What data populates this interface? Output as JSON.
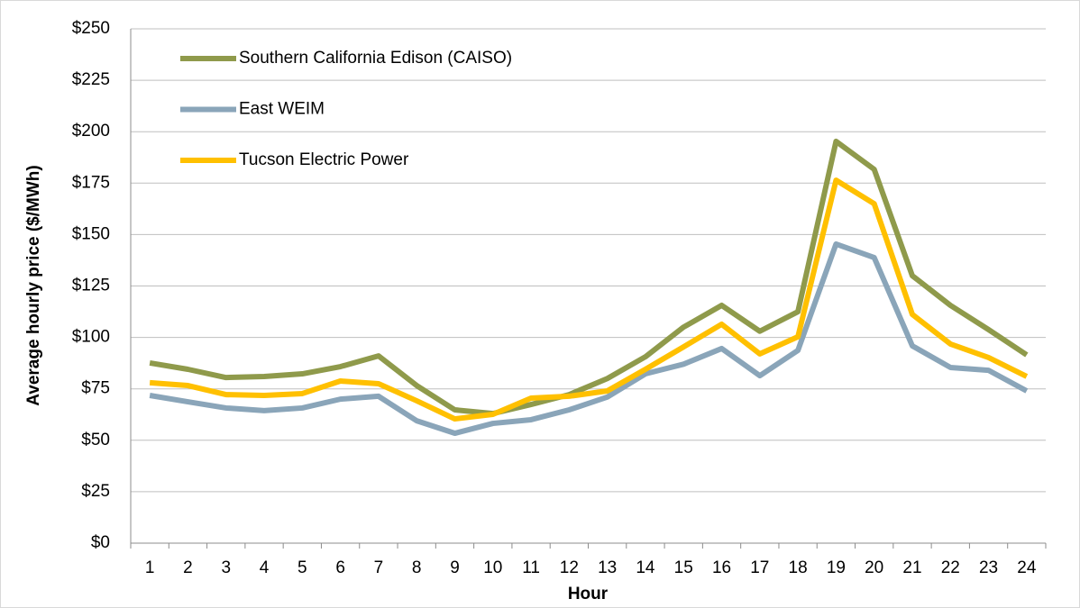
{
  "chart_data": {
    "type": "line",
    "x_label": "Hour",
    "y_label": "Average hourly price ($/MWh)",
    "categories": [
      "1",
      "2",
      "3",
      "4",
      "5",
      "6",
      "7",
      "8",
      "9",
      "10",
      "11",
      "12",
      "13",
      "14",
      "15",
      "16",
      "17",
      "18",
      "19",
      "20",
      "21",
      "22",
      "23",
      "24"
    ],
    "series": [
      {
        "name": "Southern California Edison (CAISO)",
        "color": "#8f9a4b",
        "values": [
          87.6,
          84.5,
          80.5,
          81,
          82.3,
          85.8,
          91,
          76.6,
          64.8,
          63,
          67.4,
          72.2,
          80,
          90.6,
          105,
          115.6,
          103,
          112.5,
          195.3,
          181.7,
          130,
          115.6,
          103.8,
          91.5
        ]
      },
      {
        "name": "East WEIM",
        "color": "#8aa5b9",
        "values": [
          71.8,
          68.7,
          65.7,
          64.4,
          65.7,
          70,
          71.4,
          59.5,
          53.4,
          58.2,
          60,
          64.8,
          71,
          82.3,
          87,
          94.6,
          81.4,
          93.7,
          145.4,
          138.8,
          95.9,
          85.4,
          84,
          74
        ]
      },
      {
        "name": "Tucson Electric Power",
        "color": "#ffc000",
        "values": [
          78,
          76.6,
          72.2,
          71.8,
          72.7,
          78.8,
          77.5,
          69.2,
          60.4,
          62.6,
          70.5,
          71.4,
          74,
          84.5,
          95.4,
          106.4,
          92,
          100.3,
          176.4,
          165,
          111.2,
          96.8,
          90.2,
          81
        ]
      }
    ],
    "ylim": [
      0,
      250
    ],
    "yticks": [
      {
        "value": 0,
        "label": "$0"
      },
      {
        "value": 25,
        "label": "$25"
      },
      {
        "value": 50,
        "label": "$50"
      },
      {
        "value": 75,
        "label": "$75"
      },
      {
        "value": 100,
        "label": "$100"
      },
      {
        "value": 125,
        "label": "$125"
      },
      {
        "value": 150,
        "label": "$150"
      },
      {
        "value": 175,
        "label": "$175"
      },
      {
        "value": 200,
        "label": "$200"
      },
      {
        "value": 225,
        "label": "$225"
      },
      {
        "value": 250,
        "label": "$250"
      }
    ],
    "grid": true,
    "legend": "top-left"
  }
}
